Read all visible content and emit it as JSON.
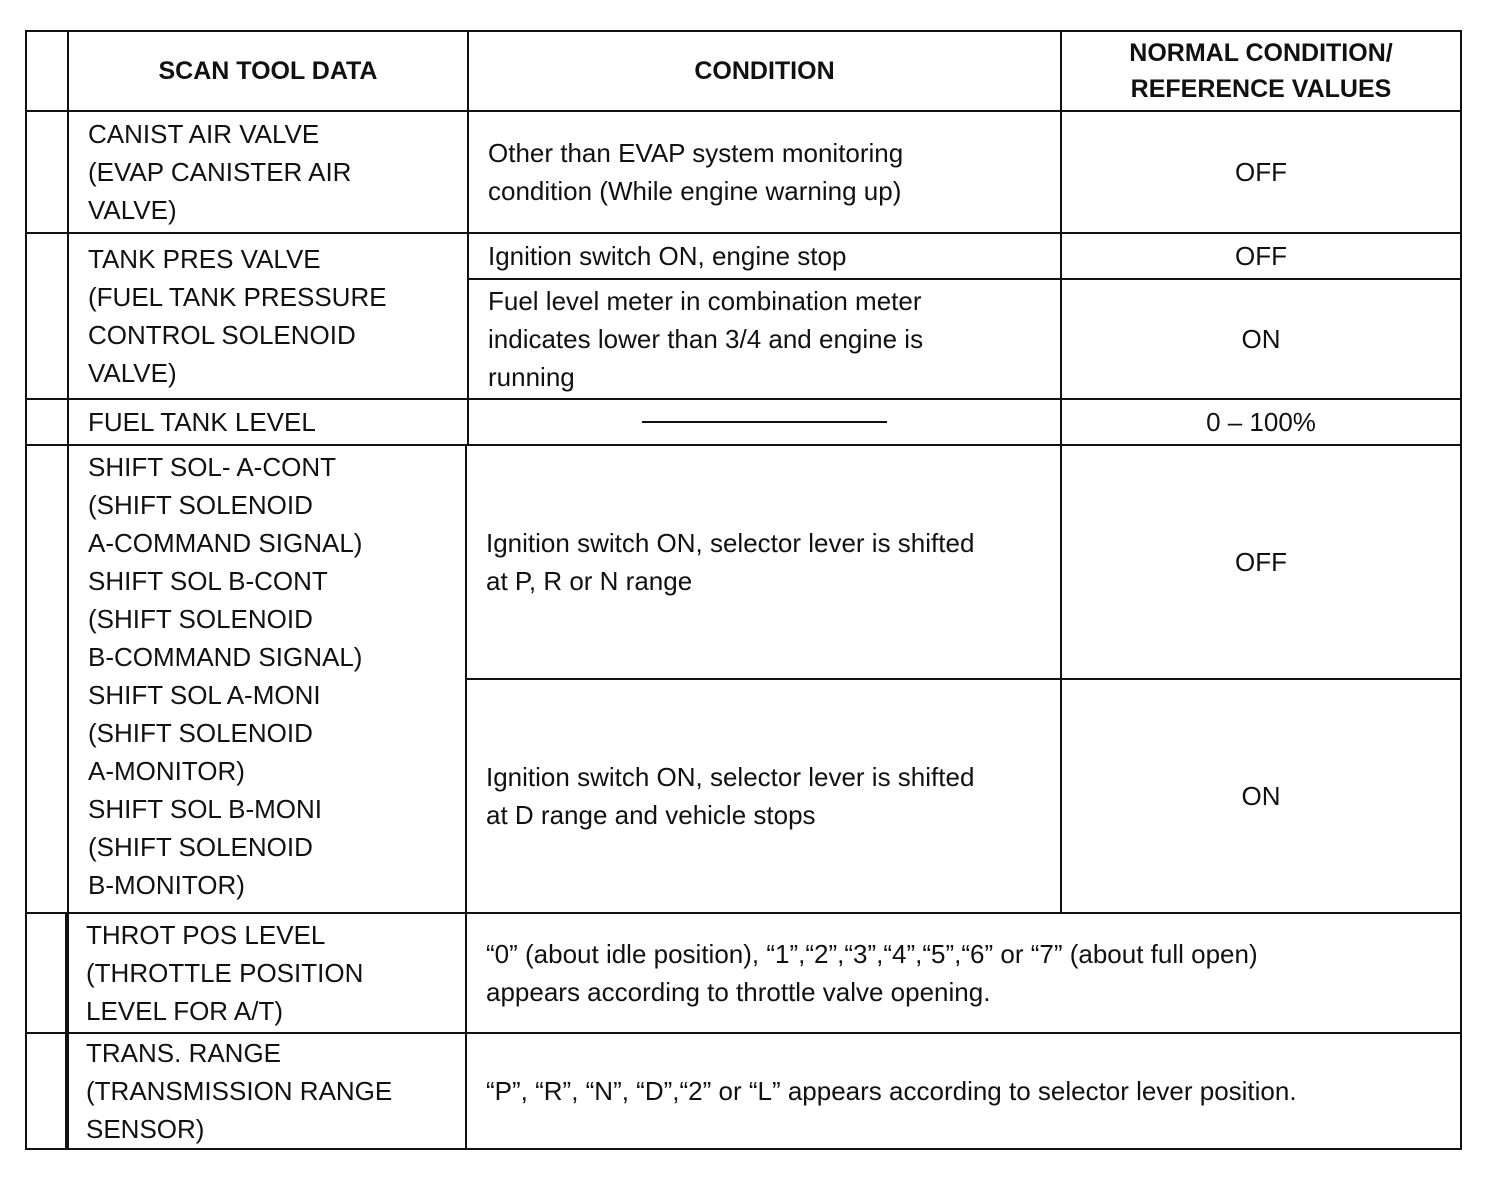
{
  "headers": {
    "scan_tool_data": "SCAN TOOL DATA",
    "condition": "CONDITION",
    "normal": "NORMAL CONDITION/\nREFERENCE VALUES"
  },
  "rows": [
    {
      "item": "CANIST AIR VALVE\n(EVAP CANISTER AIR\nVALVE)",
      "conditions": [
        {
          "condition": "Other than EVAP system monitoring\ncondition (While engine warning up)",
          "value": "OFF"
        }
      ]
    },
    {
      "item": "TANK PRES VALVE\n(FUEL TANK PRESSURE\nCONTROL SOLENOID\nVALVE)",
      "conditions": [
        {
          "condition": "Ignition switch ON, engine stop",
          "value": "OFF"
        },
        {
          "condition": "Fuel level meter in combination meter\nindicates lower than 3/4 and engine is\nrunning",
          "value": "ON"
        }
      ]
    },
    {
      "item": "FUEL TANK LEVEL",
      "conditions": [
        {
          "condition": "",
          "value": "0 – 100%"
        }
      ]
    },
    {
      "item": "SHIFT SOL- A-CONT\n(SHIFT SOLENOID\nA-COMMAND SIGNAL)\nSHIFT SOL B-CONT\n(SHIFT SOLENOID\nB-COMMAND SIGNAL)\nSHIFT SOL A-MONI\n(SHIFT SOLENOID\nA-MONITOR)\nSHIFT SOL B-MONI\n(SHIFT SOLENOID\nB-MONITOR)",
      "conditions": [
        {
          "condition": "Ignition switch ON, selector lever is shifted\nat P, R or N range",
          "value": "OFF"
        },
        {
          "condition": "Ignition switch ON, selector lever is shifted\nat D range and vehicle stops",
          "value": "ON"
        }
      ]
    },
    {
      "item": "THROT POS LEVEL\n(THROTTLE POSITION\nLEVEL FOR A/T)",
      "note": "“0” (about idle position), “1”,“2”,“3”,“4”,“5”,“6” or “7” (about full open)\nappears according to throttle valve opening."
    },
    {
      "item": "TRANS. RANGE\n(TRANSMISSION RANGE\nSENSOR)",
      "note": "“P”, “R”, “N”, “D”,“2” or “L” appears according to selector lever position."
    }
  ]
}
